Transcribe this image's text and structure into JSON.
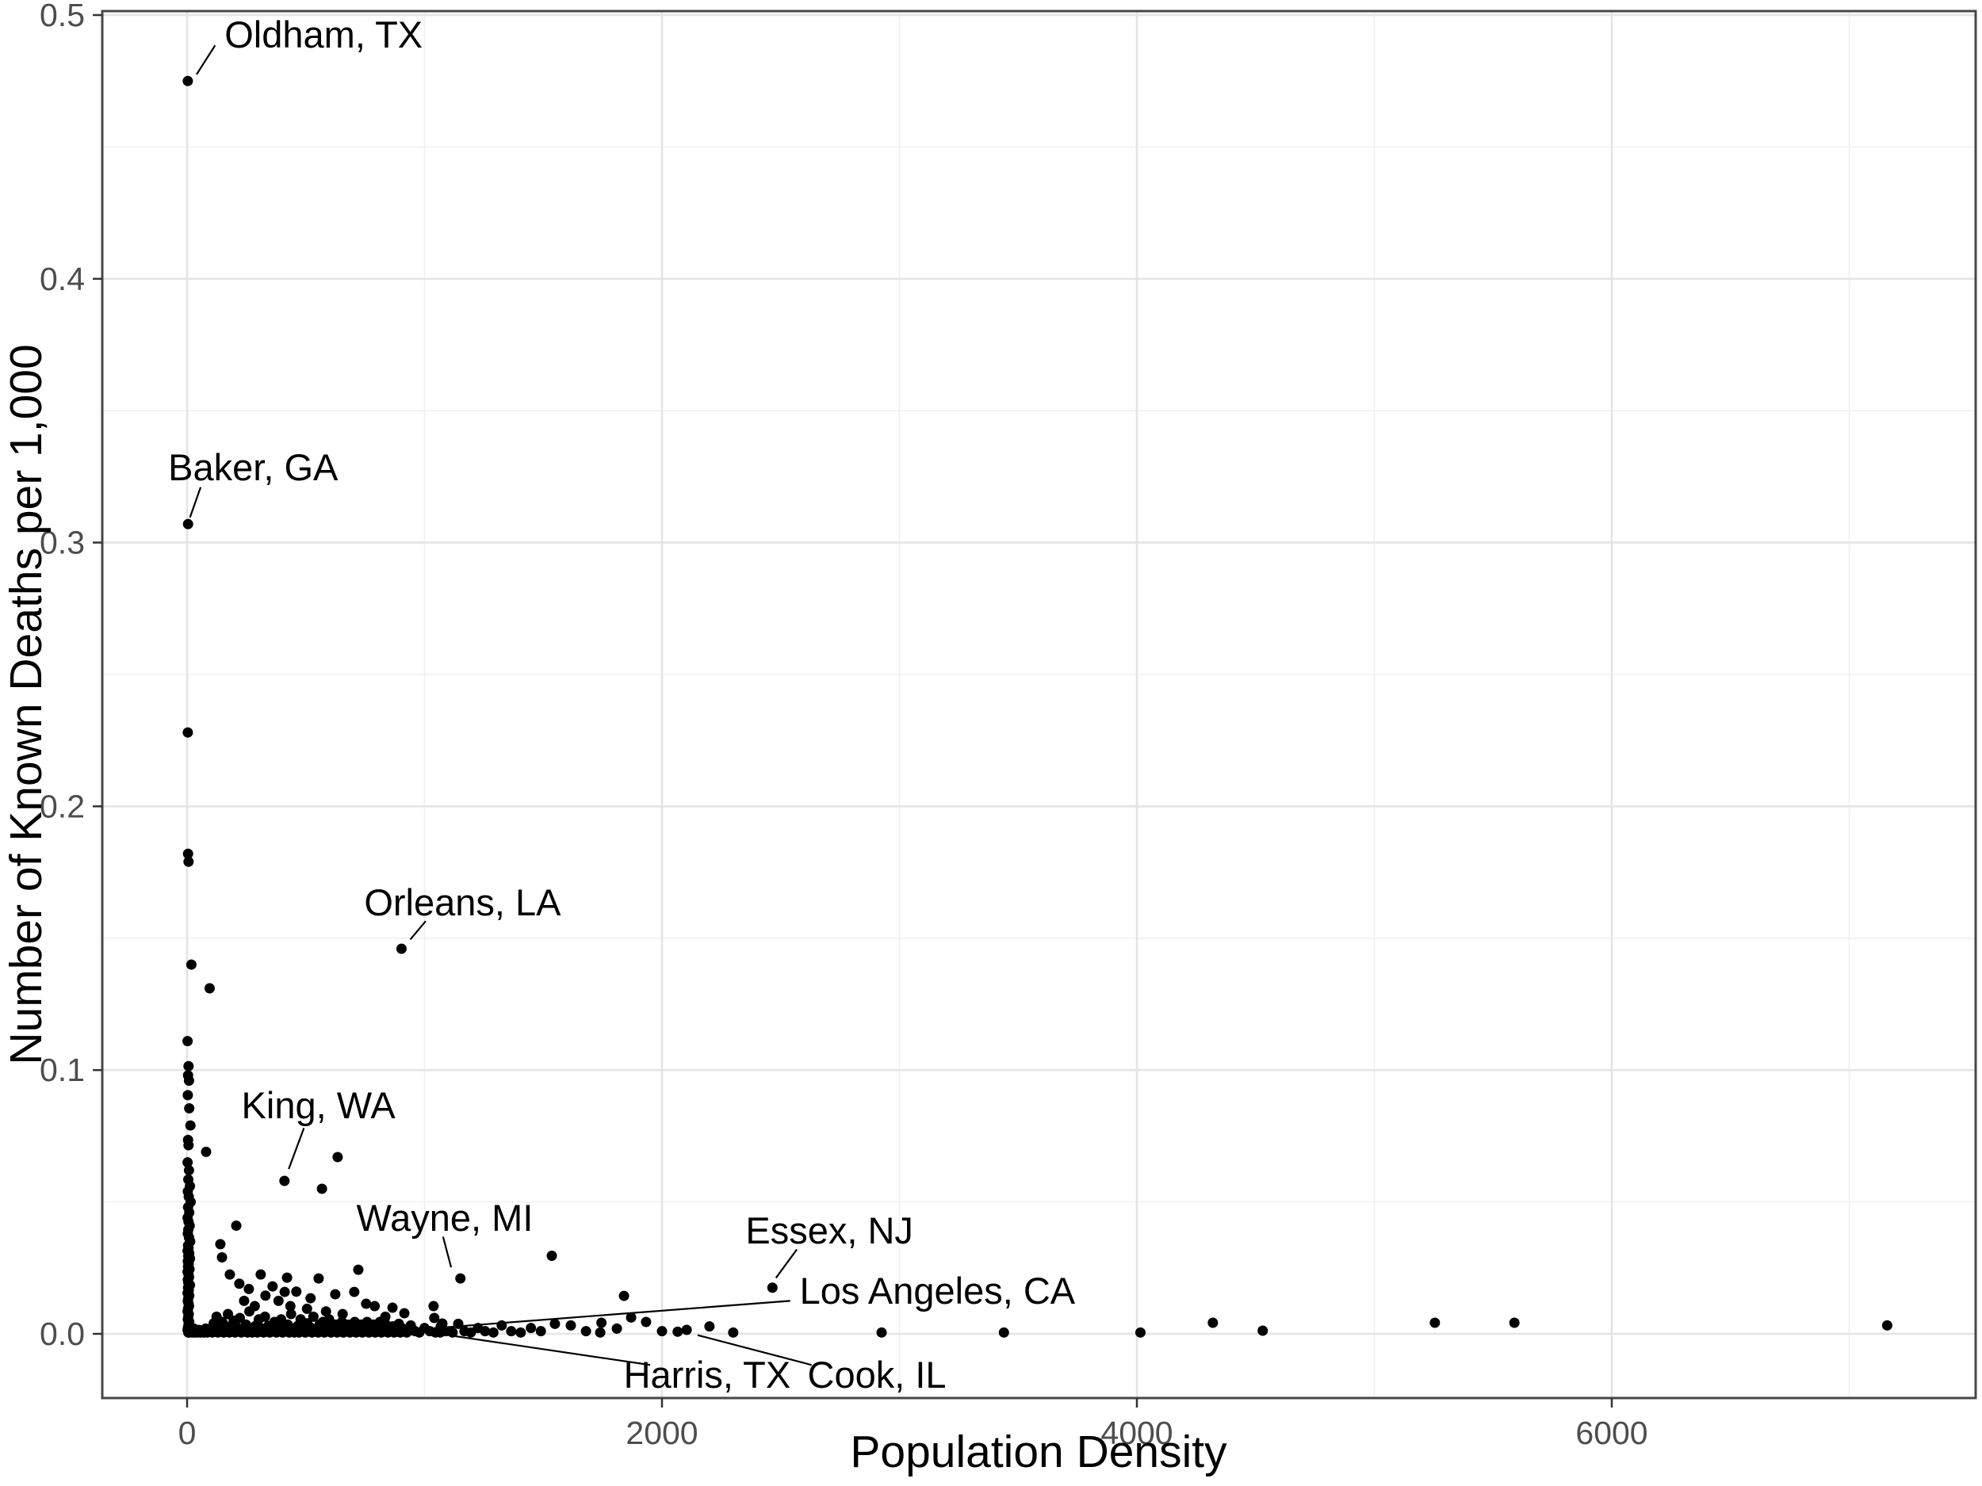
{
  "chart_data": {
    "type": "scatter",
    "title": "",
    "xlabel": "Population Density",
    "ylabel": "Number of Known Deaths per 1,000",
    "x_ticks": [
      {
        "value": 0,
        "label": "0"
      },
      {
        "value": 2000,
        "label": "2000"
      },
      {
        "value": 4000,
        "label": "4000"
      },
      {
        "value": 6000,
        "label": "6000"
      }
    ],
    "y_ticks": [
      {
        "value": 0,
        "label": "0.0"
      },
      {
        "value": 0.1,
        "label": "0.1"
      },
      {
        "value": 0.2,
        "label": "0.2"
      },
      {
        "value": 0.3,
        "label": "0.3"
      },
      {
        "value": 0.4,
        "label": "0.4"
      },
      {
        "value": 0.5,
        "label": "0.5"
      }
    ],
    "xlim": [
      -360,
      7535
    ],
    "ylim": [
      -0.0245,
      0.5015
    ],
    "grid": {
      "major_x": [
        0,
        2000,
        4000,
        6000
      ],
      "minor_x": [
        1000,
        3000,
        5000,
        7000
      ],
      "major_y": [
        0.0,
        0.1,
        0.2,
        0.3,
        0.4,
        0.5
      ],
      "minor_y": [
        0.05,
        0.15,
        0.25,
        0.35,
        0.45
      ]
    },
    "legend": "none",
    "point_color": "#000000",
    "grid_major_color": "#e4e4e4",
    "grid_minor_color": "#f0f0f0",
    "border_color": "#474747",
    "tick_color": "#333333",
    "tick_label_color": "#4d4d4d",
    "labeled_points": [
      {
        "label": "Oldham, TX",
        "x": 3,
        "y": 0.475,
        "label_x": 575,
        "label_y": 0.4925,
        "leader": [
          40,
          0.4775,
          118,
          0.4885
        ]
      },
      {
        "label": "Baker, GA",
        "x": 4,
        "y": 0.307,
        "label_x": 278,
        "label_y": 0.3285,
        "leader": [
          57,
          0.321,
          12,
          0.3095
        ]
      },
      {
        "label": "Orleans, LA",
        "x": 903,
        "y": 0.146,
        "label_x": 1160,
        "label_y": 0.1635,
        "leader": [
          940,
          0.1495,
          1005,
          0.1565
        ]
      },
      {
        "label": "King, WA",
        "x": 410,
        "y": 0.058,
        "label_x": 553,
        "label_y": 0.0865,
        "leader": [
          492,
          0.078,
          428,
          0.0625
        ]
      },
      {
        "label": "Wayne, MI",
        "x": 1151,
        "y": 0.021,
        "label_x": 1085,
        "label_y": 0.0438,
        "leader": [
          1078,
          0.0368,
          1112,
          0.0252
        ]
      },
      {
        "label": "Essex, NJ",
        "x": 2465,
        "y": 0.0175,
        "label_x": 2705,
        "label_y": 0.039,
        "leader": [
          2568,
          0.032,
          2480,
          0.0212
        ]
      },
      {
        "label": "Los Angeles, CA",
        "x": 956,
        "y": 0.0012,
        "label_x": 3160,
        "label_y": 0.0163,
        "leader": [
          2540,
          0.0125,
          990,
          0.0018
        ]
      },
      {
        "label": "Harris, TX",
        "x": 1066,
        "y": 0.0005,
        "label_x": 2190,
        "label_y": -0.0157,
        "leader": [
          1950,
          -0.0118,
          1100,
          -0.0005
        ]
      },
      {
        "label": "Cook, IL",
        "x": 2104,
        "y": 0.0015,
        "label_x": 2905,
        "label_y": -0.0157,
        "leader": [
          2630,
          -0.0118,
          2150,
          -0.0005
        ]
      }
    ],
    "points": [
      [
        3,
        0.228
      ],
      [
        4,
        0.182
      ],
      [
        6,
        0.179
      ],
      [
        18,
        0.14
      ],
      [
        95,
        0.131
      ],
      [
        2,
        0.111
      ],
      [
        6,
        0.1015
      ],
      [
        4,
        0.098
      ],
      [
        8,
        0.096
      ],
      [
        3,
        0.0905
      ],
      [
        9,
        0.0855
      ],
      [
        14,
        0.079
      ],
      [
        4,
        0.0735
      ],
      [
        6,
        0.0715
      ],
      [
        80,
        0.069
      ],
      [
        2,
        0.065
      ],
      [
        8,
        0.062
      ],
      [
        5,
        0.0585
      ],
      [
        12,
        0.056
      ],
      [
        3,
        0.054
      ],
      [
        7,
        0.052
      ],
      [
        15,
        0.05
      ],
      [
        4,
        0.048
      ],
      [
        9,
        0.046
      ],
      [
        2,
        0.044
      ],
      [
        6,
        0.0425
      ],
      [
        11,
        0.041
      ],
      [
        5,
        0.0395
      ],
      [
        3,
        0.038
      ],
      [
        8,
        0.0365
      ],
      [
        13,
        0.035
      ],
      [
        4,
        0.0335
      ],
      [
        6,
        0.0325
      ],
      [
        2,
        0.0315
      ],
      [
        9,
        0.0305
      ],
      [
        5,
        0.0295
      ],
      [
        12,
        0.0285
      ],
      [
        3,
        0.0275
      ],
      [
        7,
        0.0265
      ],
      [
        4,
        0.0255
      ],
      [
        10,
        0.0245
      ],
      [
        2,
        0.0235
      ],
      [
        6,
        0.0225
      ],
      [
        8,
        0.0215
      ],
      [
        3,
        0.0205
      ],
      [
        5,
        0.0195
      ],
      [
        12,
        0.0185
      ],
      [
        4,
        0.0175
      ],
      [
        7,
        0.0165
      ],
      [
        2,
        0.0155
      ],
      [
        9,
        0.0145
      ],
      [
        5,
        0.0135
      ],
      [
        3,
        0.0125
      ],
      [
        6,
        0.0115
      ],
      [
        8,
        0.0105
      ],
      [
        4,
        0.0095
      ],
      [
        2,
        0.0085
      ],
      [
        7,
        0.0075
      ],
      [
        5,
        0.0065
      ],
      [
        3,
        0.0055
      ],
      [
        9,
        0.0045
      ],
      [
        6,
        0.0035
      ],
      [
        4,
        0.0025
      ],
      [
        2,
        0.0015
      ],
      [
        5,
        0.0005
      ],
      [
        10,
        0.0005
      ],
      [
        16,
        0.001
      ],
      [
        22,
        0.0005
      ],
      [
        28,
        0.002
      ],
      [
        33,
        0.0005
      ],
      [
        38,
        0.001
      ],
      [
        44,
        0.0005
      ],
      [
        50,
        0.0015
      ],
      [
        57,
        0.0005
      ],
      [
        63,
        0.001
      ],
      [
        70,
        0.0005
      ],
      [
        78,
        0.002
      ],
      [
        85,
        0.0005
      ],
      [
        92,
        0.001
      ],
      [
        634,
        0.067
      ],
      [
        568,
        0.055
      ],
      [
        207,
        0.041
      ],
      [
        140,
        0.034
      ],
      [
        147,
        0.029
      ],
      [
        721,
        0.0243
      ],
      [
        421,
        0.0213
      ],
      [
        554,
        0.021
      ],
      [
        411,
        0.0159
      ],
      [
        704,
        0.0159
      ],
      [
        624,
        0.015
      ],
      [
        754,
        0.0114
      ],
      [
        1038,
        0.0105
      ],
      [
        865,
        0.0099
      ],
      [
        915,
        0.0078
      ],
      [
        1041,
        0.006
      ],
      [
        1075,
        0.0039
      ],
      [
        1536,
        0.0296
      ],
      [
        1840,
        0.0144
      ],
      [
        310,
        0.0225
      ],
      [
        360,
        0.018
      ],
      [
        460,
        0.016
      ],
      [
        520,
        0.0135
      ],
      [
        260,
        0.017
      ],
      [
        220,
        0.019
      ],
      [
        180,
        0.0225
      ],
      [
        330,
        0.0145
      ],
      [
        240,
        0.0125
      ],
      [
        285,
        0.0105
      ],
      [
        385,
        0.0125
      ],
      [
        435,
        0.0105
      ],
      [
        505,
        0.0095
      ],
      [
        585,
        0.0085
      ],
      [
        655,
        0.0075
      ],
      [
        790,
        0.0105
      ],
      [
        835,
        0.0065
      ],
      [
        100,
        0.002
      ],
      [
        106,
        0.0005
      ],
      [
        112,
        0.004
      ],
      [
        118,
        0.001
      ],
      [
        124,
        0.0065
      ],
      [
        130,
        0.0005
      ],
      [
        136,
        0.002
      ],
      [
        142,
        0.001
      ],
      [
        148,
        0.0045
      ],
      [
        154,
        0.0005
      ],
      [
        160,
        0.003
      ],
      [
        166,
        0.001
      ],
      [
        172,
        0.0075
      ],
      [
        178,
        0.0005
      ],
      [
        184,
        0.002
      ],
      [
        190,
        0.001
      ],
      [
        196,
        0.005
      ],
      [
        202,
        0.0005
      ],
      [
        208,
        0.0025
      ],
      [
        214,
        0.001
      ],
      [
        222,
        0.006
      ],
      [
        228,
        0.0005
      ],
      [
        234,
        0.002
      ],
      [
        242,
        0.001
      ],
      [
        248,
        0.0035
      ],
      [
        254,
        0.0005
      ],
      [
        262,
        0.0085
      ],
      [
        268,
        0.002
      ],
      [
        274,
        0.0005
      ],
      [
        282,
        0.001
      ],
      [
        288,
        0.003
      ],
      [
        296,
        0.0005
      ],
      [
        302,
        0.0055
      ],
      [
        308,
        0.001
      ],
      [
        316,
        0.002
      ],
      [
        322,
        0.0005
      ],
      [
        328,
        0.0065
      ],
      [
        336,
        0.001
      ],
      [
        342,
        0.003
      ],
      [
        348,
        0.0005
      ],
      [
        356,
        0.002
      ],
      [
        362,
        0.001
      ],
      [
        368,
        0.0045
      ],
      [
        376,
        0.0005
      ],
      [
        382,
        0.0025
      ],
      [
        388,
        0.001
      ],
      [
        396,
        0.0055
      ],
      [
        402,
        0.0005
      ],
      [
        408,
        0.002
      ],
      [
        416,
        0.001
      ],
      [
        424,
        0.0035
      ],
      [
        430,
        0.0005
      ],
      [
        438,
        0.0075
      ],
      [
        444,
        0.002
      ],
      [
        452,
        0.0005
      ],
      [
        458,
        0.001
      ],
      [
        466,
        0.003
      ],
      [
        472,
        0.0005
      ],
      [
        478,
        0.0055
      ],
      [
        486,
        0.001
      ],
      [
        492,
        0.002
      ],
      [
        498,
        0.0005
      ],
      [
        506,
        0.004
      ],
      [
        512,
        0.001
      ],
      [
        518,
        0.0025
      ],
      [
        526,
        0.0005
      ],
      [
        532,
        0.0065
      ],
      [
        538,
        0.001
      ],
      [
        546,
        0.002
      ],
      [
        552,
        0.0005
      ],
      [
        558,
        0.0035
      ],
      [
        566,
        0.001
      ],
      [
        572,
        0.0045
      ],
      [
        578,
        0.0005
      ],
      [
        586,
        0.002
      ],
      [
        592,
        0.001
      ],
      [
        598,
        0.0055
      ],
      [
        606,
        0.0005
      ],
      [
        612,
        0.0025
      ],
      [
        618,
        0.001
      ],
      [
        626,
        0.0035
      ],
      [
        632,
        0.0005
      ],
      [
        638,
        0.002
      ],
      [
        646,
        0.001
      ],
      [
        652,
        0.0045
      ],
      [
        658,
        0.0005
      ],
      [
        666,
        0.0025
      ],
      [
        672,
        0.001
      ],
      [
        678,
        0.0035
      ],
      [
        686,
        0.0005
      ],
      [
        692,
        0.002
      ],
      [
        698,
        0.001
      ],
      [
        706,
        0.0045
      ],
      [
        712,
        0.0005
      ],
      [
        718,
        0.0025
      ],
      [
        726,
        0.001
      ],
      [
        732,
        0.0035
      ],
      [
        738,
        0.0005
      ],
      [
        746,
        0.002
      ],
      [
        752,
        0.001
      ],
      [
        758,
        0.0045
      ],
      [
        766,
        0.0005
      ],
      [
        772,
        0.0025
      ],
      [
        778,
        0.001
      ],
      [
        786,
        0.0035
      ],
      [
        792,
        0.0005
      ],
      [
        798,
        0.002
      ],
      [
        806,
        0.001
      ],
      [
        812,
        0.0045
      ],
      [
        818,
        0.0005
      ],
      [
        826,
        0.0025
      ],
      [
        832,
        0.001
      ],
      [
        838,
        0.0035
      ],
      [
        846,
        0.0005
      ],
      [
        852,
        0.002
      ],
      [
        858,
        0.001
      ],
      [
        866,
        0.0028
      ],
      [
        872,
        0.0005
      ],
      [
        878,
        0.0018
      ],
      [
        886,
        0.001
      ],
      [
        892,
        0.0038
      ],
      [
        898,
        0.0005
      ],
      [
        908,
        0.002
      ],
      [
        925,
        0.0005
      ],
      [
        942,
        0.0032
      ],
      [
        960,
        0.001
      ],
      [
        978,
        0.0005
      ],
      [
        1000,
        0.0022
      ],
      [
        1022,
        0.001
      ],
      [
        1046,
        0.0005
      ],
      [
        1068,
        0.0028
      ],
      [
        1090,
        0.001
      ],
      [
        1118,
        0.0005
      ],
      [
        1142,
        0.0038
      ],
      [
        1168,
        0.001
      ],
      [
        1195,
        0.0005
      ],
      [
        1225,
        0.0022
      ],
      [
        1255,
        0.001
      ],
      [
        1290,
        0.0005
      ],
      [
        1325,
        0.0032
      ],
      [
        1365,
        0.001
      ],
      [
        1405,
        0.0005
      ],
      [
        1448,
        0.0022
      ],
      [
        1490,
        0.001
      ],
      [
        1549,
        0.0038
      ],
      [
        1616,
        0.0032
      ],
      [
        1680,
        0.001
      ],
      [
        1740,
        0.0005
      ],
      [
        1745,
        0.0042
      ],
      [
        1810,
        0.002
      ],
      [
        1870,
        0.0062
      ],
      [
        1933,
        0.0045
      ],
      [
        2000,
        0.001
      ],
      [
        2066,
        0.0008
      ],
      [
        2200,
        0.0028
      ],
      [
        2300,
        0.0005
      ],
      [
        2925,
        0.0005
      ],
      [
        3440,
        0.0005
      ],
      [
        4015,
        0.0005
      ],
      [
        4320,
        0.0042
      ],
      [
        4530,
        0.0012
      ],
      [
        5255,
        0.0042
      ],
      [
        5590,
        0.0042
      ],
      [
        7160,
        0.0032
      ]
    ]
  }
}
